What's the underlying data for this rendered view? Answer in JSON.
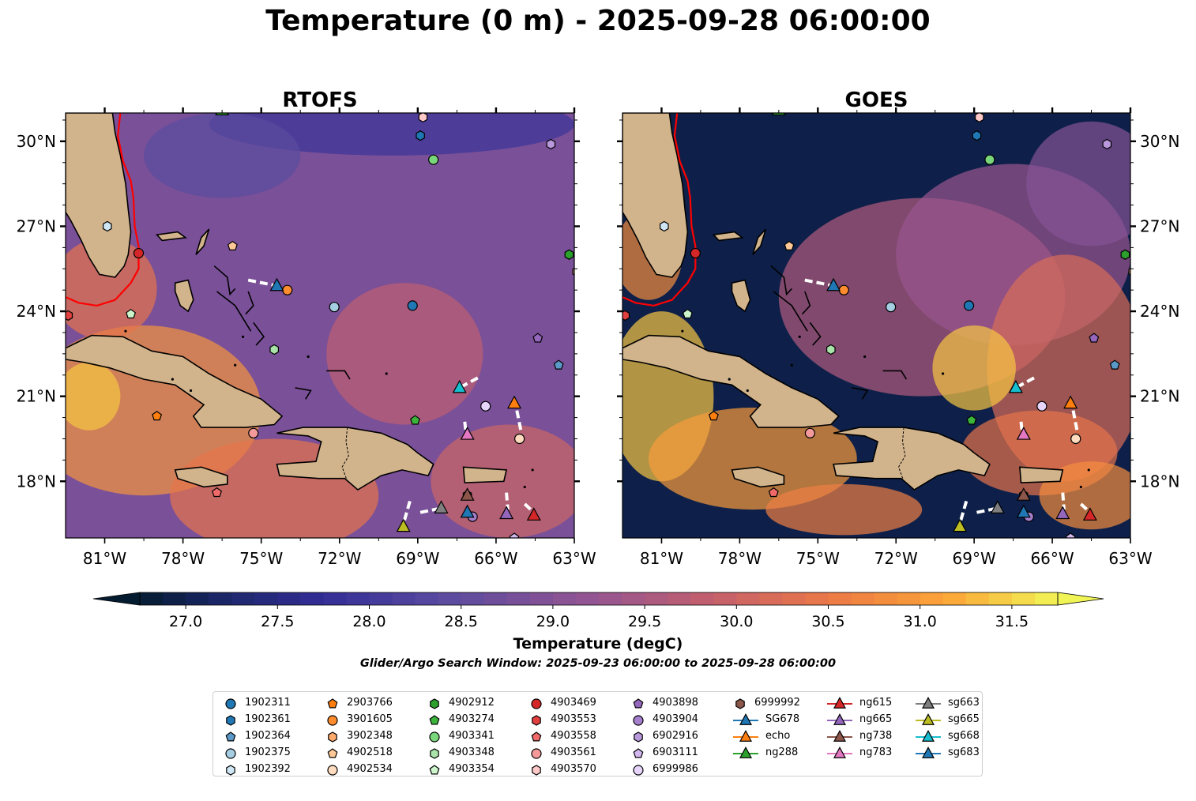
{
  "title": "Temperature (0 m) - 2025-09-28 06:00:00",
  "chart_data": {
    "type": "contour-map",
    "panels": [
      {
        "title": "RTOFS",
        "tick_label_side": "left"
      },
      {
        "title": "GOES",
        "tick_label_side": "right"
      }
    ],
    "lon_range": [
      -82.5,
      -63
    ],
    "lat_range": [
      16,
      31
    ],
    "x_ticks": [
      -81,
      -78,
      -75,
      -72,
      -69,
      -66,
      -63
    ],
    "x_tick_labels": [
      "81°W",
      "78°W",
      "75°W",
      "72°W",
      "69°W",
      "66°W",
      "63°W"
    ],
    "y_ticks": [
      18,
      21,
      24,
      27,
      30
    ],
    "y_tick_labels": [
      "18°N",
      "21°N",
      "24°N",
      "27°N",
      "30°N"
    ],
    "colorbar": {
      "label": "Temperature (degC)",
      "min": 26.75,
      "max": 31.75,
      "step": 0.125,
      "extend": "both",
      "ticks": [
        27.0,
        27.5,
        28.0,
        28.5,
        29.0,
        29.5,
        30.0,
        30.5,
        31.0,
        31.5
      ],
      "tick_labels": [
        "27.0",
        "27.5",
        "28.0",
        "28.5",
        "29.0",
        "29.5",
        "30.0",
        "30.5",
        "31.0",
        "31.5"
      ]
    },
    "colors": {
      "land": "#d2b48c",
      "gulf_stream": "#ff0000",
      "glider_track": "#ffffff"
    },
    "legend_columns": [
      [
        {
          "label": "1902311",
          "marker": "circle",
          "color": "#1f77b4"
        },
        {
          "label": "1902361",
          "marker": "hexagon",
          "color": "#1f77b4"
        },
        {
          "label": "1902364",
          "marker": "pentagon",
          "color": "#5b9ac8"
        },
        {
          "label": "1902375",
          "marker": "circle",
          "color": "#a6cee3"
        },
        {
          "label": "1902392",
          "marker": "hexagon",
          "color": "#cfe6f5"
        }
      ],
      [
        {
          "label": "2903766",
          "marker": "pentagon",
          "color": "#ff7f0e"
        },
        {
          "label": "3901605",
          "marker": "circle",
          "color": "#ff8c2e"
        },
        {
          "label": "3902348",
          "marker": "hexagon",
          "color": "#ffa96b"
        },
        {
          "label": "4902518",
          "marker": "pentagon",
          "color": "#ffc896"
        },
        {
          "label": "4902534",
          "marker": "circle",
          "color": "#ffdcc0"
        }
      ],
      [
        {
          "label": "4902912",
          "marker": "hexagon",
          "color": "#2ca02c"
        },
        {
          "label": "4903274",
          "marker": "pentagon",
          "color": "#3cb43c"
        },
        {
          "label": "4903341",
          "marker": "circle",
          "color": "#7ad67a"
        },
        {
          "label": "4903348",
          "marker": "hexagon",
          "color": "#a9e3a9"
        },
        {
          "label": "4903354",
          "marker": "pentagon",
          "color": "#ccf5cc"
        }
      ],
      [
        {
          "label": "4903469",
          "marker": "circle",
          "color": "#d62728"
        },
        {
          "label": "4903553",
          "marker": "hexagon",
          "color": "#e0403f"
        },
        {
          "label": "4903558",
          "marker": "pentagon",
          "color": "#f06a6a"
        },
        {
          "label": "4903561",
          "marker": "circle",
          "color": "#f59a9a"
        },
        {
          "label": "4903570",
          "marker": "hexagon",
          "color": "#ffc9c9"
        }
      ],
      [
        {
          "label": "4903898",
          "marker": "pentagon",
          "color": "#9467bd"
        },
        {
          "label": "4903904",
          "marker": "circle",
          "color": "#a57fcc"
        },
        {
          "label": "6902916",
          "marker": "hexagon",
          "color": "#b999db"
        },
        {
          "label": "6903111",
          "marker": "pentagon",
          "color": "#d2b8ee"
        },
        {
          "label": "6999986",
          "marker": "circle",
          "color": "#e6d4fa"
        }
      ],
      [
        {
          "label": "6999992",
          "marker": "hexagon",
          "color": "#8c564b"
        },
        {
          "label": "SG678",
          "marker": "triangle",
          "color": "#1f77b4"
        },
        {
          "label": "echo",
          "marker": "triangle",
          "color": "#ff7f0e"
        },
        {
          "label": "ng288",
          "marker": "triangle",
          "color": "#2ca02c"
        }
      ],
      [
        {
          "label": "ng615",
          "marker": "triangle",
          "color": "#d62728"
        },
        {
          "label": "ng665",
          "marker": "triangle",
          "color": "#9467bd"
        },
        {
          "label": "ng738",
          "marker": "triangle",
          "color": "#8c564b"
        },
        {
          "label": "ng783",
          "marker": "triangle",
          "color": "#e377c2"
        }
      ],
      [
        {
          "label": "sg663",
          "marker": "triangle",
          "color": "#7f7f7f"
        },
        {
          "label": "sg665",
          "marker": "triangle",
          "color": "#bcbd22"
        },
        {
          "label": "sg668",
          "marker": "triangle",
          "color": "#17becf"
        },
        {
          "label": "sg683",
          "marker": "triangle",
          "color": "#1f77b4"
        }
      ]
    ],
    "argo_floats": [
      {
        "id": "1902311",
        "lon": -69.2,
        "lat": 24.2
      },
      {
        "id": "1902361",
        "lon": -68.9,
        "lat": 30.2
      },
      {
        "id": "1902364",
        "lon": -63.6,
        "lat": 22.1
      },
      {
        "id": "1902375",
        "lon": -72.2,
        "lat": 24.15
      },
      {
        "id": "1902392",
        "lon": -80.9,
        "lat": 27.0
      },
      {
        "id": "2903766",
        "lon": -79.0,
        "lat": 20.3
      },
      {
        "id": "3901605",
        "lon": -74.0,
        "lat": 24.75
      },
      {
        "id": "3902348",
        "lon": -62.9,
        "lat": 25.4
      },
      {
        "id": "4902518",
        "lon": -76.1,
        "lat": 26.3
      },
      {
        "id": "4902534",
        "lon": -65.1,
        "lat": 19.5
      },
      {
        "id": "4902912",
        "lon": -63.2,
        "lat": 26.0
      },
      {
        "id": "4903274",
        "lon": -69.1,
        "lat": 20.15
      },
      {
        "id": "4903341",
        "lon": -68.4,
        "lat": 29.35
      },
      {
        "id": "4903348",
        "lon": -74.5,
        "lat": 22.65
      },
      {
        "id": "4903354",
        "lon": -80.0,
        "lat": 23.9
      },
      {
        "id": "4903469",
        "lon": -79.7,
        "lat": 26.05
      },
      {
        "id": "4903553",
        "lon": -82.4,
        "lat": 23.85
      },
      {
        "id": "4903558",
        "lon": -76.7,
        "lat": 17.6
      },
      {
        "id": "4903561",
        "lon": -75.3,
        "lat": 19.7
      },
      {
        "id": "4903570",
        "lon": -68.8,
        "lat": 30.85
      },
      {
        "id": "4903898",
        "lon": -64.4,
        "lat": 23.05
      },
      {
        "id": "4903904",
        "lon": -66.9,
        "lat": 16.75
      },
      {
        "id": "6902916",
        "lon": -63.9,
        "lat": 29.9
      },
      {
        "id": "6903111",
        "lon": -65.3,
        "lat": 16.0
      },
      {
        "id": "6999986",
        "lon": -66.4,
        "lat": 20.65
      },
      {
        "id": "6999992",
        "lon": -67.1,
        "lat": 17.5
      }
    ],
    "gliders": [
      {
        "id": "SG678",
        "lon": -74.4,
        "lat": 24.9,
        "track": [
          [
            -75.5,
            25.1
          ],
          [
            -74.4,
            24.9
          ]
        ]
      },
      {
        "id": "echo",
        "lon": -65.3,
        "lat": 20.75,
        "track": [
          [
            -65.2,
            20.5
          ],
          [
            -65.05,
            19.8
          ]
        ]
      },
      {
        "id": "ng288",
        "lon": -76.5,
        "lat": 31.1,
        "track": []
      },
      {
        "id": "ng615",
        "lon": -64.55,
        "lat": 16.8,
        "track": [
          [
            -64.9,
            17.2
          ],
          [
            -64.55,
            16.9
          ]
        ]
      },
      {
        "id": "ng665",
        "lon": -65.6,
        "lat": 16.85,
        "track": [
          [
            -65.6,
            17.6
          ],
          [
            -65.55,
            17.0
          ]
        ]
      },
      {
        "id": "ng738",
        "lon": -67.1,
        "lat": 17.5,
        "track": []
      },
      {
        "id": "ng783",
        "lon": -67.1,
        "lat": 19.65,
        "track": [
          [
            -67.2,
            20.1
          ],
          [
            -67.15,
            19.7
          ]
        ]
      },
      {
        "id": "sg663",
        "lon": -68.1,
        "lat": 17.05,
        "track": [
          [
            -68.9,
            16.9
          ],
          [
            -68.1,
            17.05
          ]
        ]
      },
      {
        "id": "sg665",
        "lon": -69.55,
        "lat": 16.4,
        "track": [
          [
            -69.3,
            17.3
          ],
          [
            -69.55,
            16.5
          ]
        ]
      },
      {
        "id": "sg668",
        "lon": -67.4,
        "lat": 21.3,
        "track": [
          [
            -66.7,
            21.65
          ],
          [
            -67.4,
            21.3
          ]
        ]
      },
      {
        "id": "sg683",
        "lon": -67.1,
        "lat": 16.9,
        "track": []
      }
    ]
  },
  "colorbar_label": "Temperature (degC)",
  "search_window": "Glider/Argo Search Window: 2025-09-23 06:00:00 to 2025-09-28 06:00:00"
}
